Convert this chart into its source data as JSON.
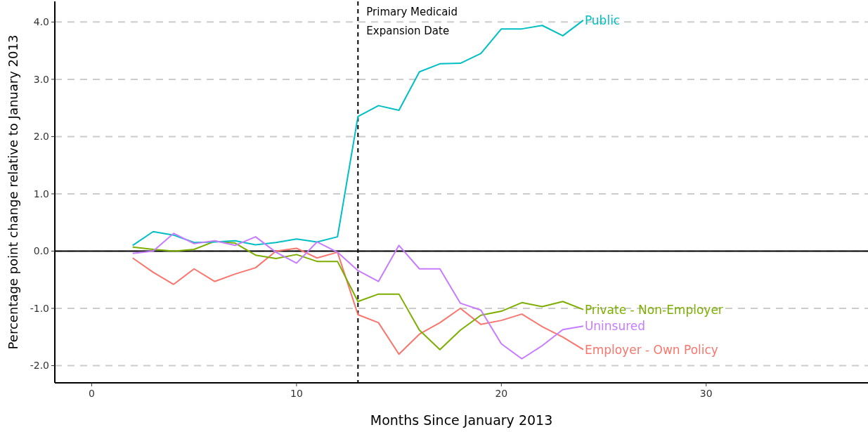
{
  "chart_data": {
    "type": "line",
    "xlabel": "Months Since January 2013",
    "ylabel": "Percentage point change relative to January 2013",
    "x": [
      2,
      3,
      4,
      5,
      6,
      7,
      8,
      9,
      10,
      11,
      12,
      13,
      14,
      15,
      16,
      17,
      18,
      19,
      20,
      21,
      22,
      23,
      24
    ],
    "series": [
      {
        "name": "Employer - Own Policy",
        "color": "#f8766d",
        "values": [
          -0.12,
          -0.37,
          -0.58,
          -0.31,
          -0.53,
          -0.4,
          -0.29,
          0.0,
          0.05,
          -0.12,
          -0.02,
          -1.11,
          -1.25,
          -1.8,
          -1.45,
          -1.25,
          -1.0,
          -1.28,
          -1.21,
          -1.1,
          -1.32,
          -1.5,
          -1.72
        ]
      },
      {
        "name": "Private - Non-Employer",
        "color": "#7cae00",
        "values": [
          0.07,
          0.03,
          0.0,
          0.03,
          0.17,
          0.14,
          -0.07,
          -0.13,
          -0.06,
          -0.18,
          -0.18,
          -0.88,
          -0.75,
          -0.75,
          -1.38,
          -1.72,
          -1.38,
          -1.12,
          -1.05,
          -0.9,
          -0.97,
          -0.88,
          -1.02
        ]
      },
      {
        "name": "Public",
        "color": "#00bfc4",
        "values": [
          0.1,
          0.34,
          0.28,
          0.15,
          0.16,
          0.18,
          0.11,
          0.15,
          0.21,
          0.16,
          0.25,
          2.35,
          2.54,
          2.46,
          3.13,
          3.27,
          3.28,
          3.45,
          3.88,
          3.88,
          3.94,
          3.76,
          4.03
        ]
      },
      {
        "name": "Uninsured",
        "color": "#c77cff",
        "values": [
          -0.04,
          0.0,
          0.31,
          0.13,
          0.18,
          0.1,
          0.25,
          -0.02,
          -0.21,
          0.16,
          -0.02,
          -0.34,
          -0.53,
          0.1,
          -0.31,
          -0.31,
          -0.91,
          -1.03,
          -1.62,
          -1.88,
          -1.65,
          -1.37,
          -1.31
        ]
      }
    ],
    "xlim": [
      -1.8,
      37.9
    ],
    "ylim": [
      -2.3,
      4.36
    ],
    "xticks": [
      0,
      10,
      20,
      30
    ],
    "yticks": [
      {
        "value": -2,
        "label": "-2.0"
      },
      {
        "value": -1,
        "label": "-1.0"
      },
      {
        "value": 0,
        "label": "0.0"
      },
      {
        "value": 1,
        "label": "1.0"
      },
      {
        "value": 2,
        "label": "2.0"
      },
      {
        "value": 3,
        "label": "3.0"
      },
      {
        "value": 4,
        "label": "4.0"
      }
    ],
    "grid": "y",
    "legend": false,
    "line_style": "solid",
    "marker": "none",
    "ref_lines": [
      {
        "axis": "y",
        "value": 0,
        "color": "#000000",
        "line_style": "solid"
      },
      {
        "axis": "x",
        "value": 13,
        "label": "Primary Medicaid Expansion Date",
        "color": "#000000",
        "line_style": "dashed"
      }
    ]
  }
}
